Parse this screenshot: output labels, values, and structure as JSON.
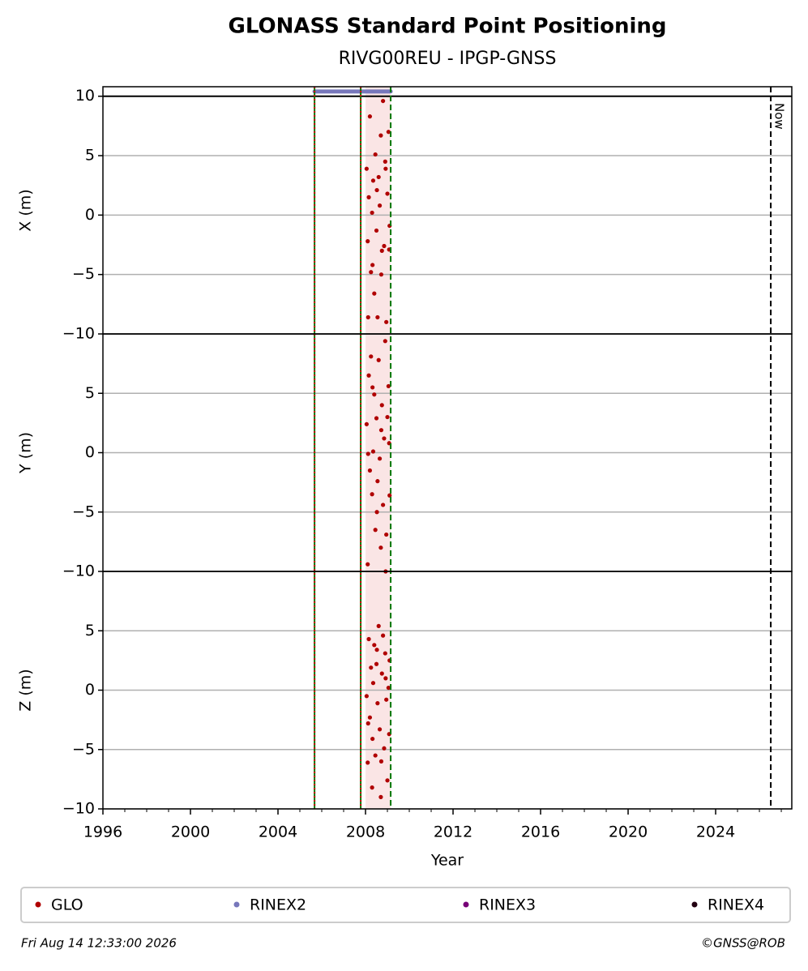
{
  "chart_data": {
    "type": "scatter",
    "title": "GLONASS Standard Point Positioning",
    "subtitle": "RIVG00REU - IPGP-GNSS",
    "xlabel": "Year",
    "xlim": [
      1996,
      2027.48
    ],
    "xticks": [
      1996,
      2000,
      2004,
      2008,
      2012,
      2016,
      2020,
      2024
    ],
    "xminorticks": [
      1997,
      1998,
      1999,
      2001,
      2002,
      2003,
      2005,
      2006,
      2007,
      2009,
      2010,
      2011,
      2013,
      2014,
      2015,
      2017,
      2018,
      2019,
      2021,
      2022,
      2023,
      2025,
      2026,
      2027
    ],
    "grid": true,
    "band": {
      "x": [
        2008.0,
        2009.15
      ],
      "color": "#f6d4d4"
    },
    "vlines": [
      {
        "x": 2005.67,
        "color": "#007700",
        "overlay": "#cc0000"
      },
      {
        "x": 2007.78,
        "color": "#007700",
        "overlay": "#cc0000"
      },
      {
        "x": 2009.15,
        "color": "#007700",
        "dashed": true
      },
      {
        "x": 2026.52,
        "color": "#000000",
        "dashed": true,
        "label": "Now"
      }
    ],
    "panels": [
      {
        "ylabel": "X (m)",
        "ylim": [
          -10,
          10.8
        ],
        "yticks": [
          {
            "value": -10,
            "label": "−10"
          },
          {
            "value": -5,
            "label": "−5"
          },
          0,
          5,
          10
        ],
        "hline": 10,
        "series": [
          {
            "name": "GLO",
            "color": "#b00000",
            "x": [
              2008.05,
              2008.1,
              2008.15,
              2008.2,
              2008.25,
              2008.3,
              2008.35,
              2008.4,
              2008.45,
              2008.5,
              2008.55,
              2008.6,
              2008.65,
              2008.7,
              2008.75,
              2008.8,
              2008.85,
              2008.9,
              2008.95,
              2009.0,
              2009.05,
              2009.1,
              2008.12,
              2008.32,
              2008.52,
              2008.72,
              2008.92,
              2009.08
            ],
            "values": [
              3.9,
              -2.2,
              1.5,
              8.3,
              -4.8,
              0.2,
              2.9,
              -6.6,
              5.1,
              -1.3,
              -8.6,
              3.2,
              0.8,
              6.7,
              -3.0,
              9.6,
              -2.6,
              4.5,
              -9.0,
              1.8,
              7.0,
              -0.9,
              -8.6,
              -4.2,
              2.1,
              -5.0,
              3.9,
              -2.9
            ]
          },
          {
            "name": "RINEX2",
            "color": "#7777bb",
            "kind": "line",
            "x": [
              2005.67,
              2009.15
            ],
            "values": [
              10.4,
              10.4
            ]
          }
        ]
      },
      {
        "ylabel": "Y (m)",
        "ylim": [
          -10,
          10
        ],
        "yticks": [
          {
            "value": -10,
            "label": "−10"
          },
          {
            "value": -5,
            "label": "−5"
          },
          0,
          5
        ],
        "series": [
          {
            "name": "GLO",
            "color": "#b00000",
            "x": [
              2008.05,
              2008.1,
              2008.15,
              2008.2,
              2008.25,
              2008.3,
              2008.35,
              2008.4,
              2008.45,
              2008.5,
              2008.55,
              2008.6,
              2008.65,
              2008.7,
              2008.75,
              2008.8,
              2008.85,
              2008.9,
              2008.95,
              2009.0,
              2009.05,
              2009.1,
              2008.12,
              2008.32,
              2008.52,
              2008.72,
              2008.92,
              2009.08
            ],
            "values": [
              2.4,
              -9.4,
              6.5,
              -1.5,
              8.1,
              -3.5,
              0.1,
              4.9,
              -6.5,
              2.9,
              -2.4,
              7.8,
              -0.5,
              -8.0,
              4.0,
              -4.4,
              1.2,
              9.4,
              -6.9,
              3.0,
              5.6,
              -3.6,
              -0.1,
              5.5,
              -5.0,
              1.9,
              -10.0,
              0.8
            ]
          }
        ]
      },
      {
        "ylabel": "Z (m)",
        "ylim": [
          -10,
          10
        ],
        "yticks": [
          {
            "value": -10,
            "label": "−10"
          },
          {
            "value": -5,
            "label": "−5"
          },
          0,
          5
        ],
        "series": [
          {
            "name": "GLO",
            "color": "#b00000",
            "x": [
              2008.05,
              2008.1,
              2008.15,
              2008.2,
              2008.25,
              2008.3,
              2008.35,
              2008.4,
              2008.45,
              2008.5,
              2008.55,
              2008.6,
              2008.65,
              2008.7,
              2008.75,
              2008.8,
              2008.85,
              2008.9,
              2008.95,
              2009.0,
              2009.05,
              2009.1,
              2008.12,
              2008.32,
              2008.52,
              2008.72,
              2008.92,
              2009.08
            ],
            "values": [
              -0.5,
              -6.1,
              4.3,
              -2.3,
              1.9,
              -8.2,
              0.6,
              3.8,
              -5.5,
              2.2,
              -1.1,
              5.4,
              -3.3,
              -9.0,
              1.4,
              4.6,
              -4.9,
              3.1,
              -0.8,
              -7.6,
              0.2,
              2.5,
              -2.8,
              -4.1,
              3.4,
              -6.0,
              1.0,
              -3.7
            ]
          }
        ]
      }
    ],
    "legend": [
      {
        "name": "GLO",
        "color": "#b00000"
      },
      {
        "name": "RINEX2",
        "color": "#7777bb"
      },
      {
        "name": "RINEX3",
        "color": "#770077"
      },
      {
        "name": "RINEX4",
        "color": "#220011"
      }
    ],
    "footer_left": "Fri Aug 14 12:33:00 2026",
    "footer_right": "©GNSS@ROB"
  }
}
